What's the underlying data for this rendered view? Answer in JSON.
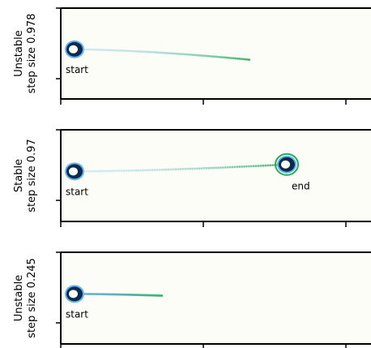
{
  "chart_data": [
    {
      "type": "scatter",
      "title": "",
      "ylabel": [
        "Unstable",
        "step size 0.978"
      ],
      "annotations": [
        "start"
      ],
      "trajectory": {
        "start": [
          0.0,
          0.5
        ],
        "end": [
          1.3,
          0.38
        ],
        "color_start": "#b5dce8",
        "color_end": "#3fb56b"
      },
      "markers": [
        {
          "kind": "start-ring",
          "x": 0.0,
          "y": 0.5
        }
      ],
      "xlim": [
        -0.1,
        2.1
      ],
      "ylim": [
        0,
        1
      ]
    },
    {
      "type": "scatter",
      "title": "",
      "ylabel": [
        "Stable",
        "step size 0.97"
      ],
      "annotations": [
        "start",
        "end"
      ],
      "trajectory": {
        "start": [
          0.0,
          0.5
        ],
        "end": [
          1.58,
          0.58
        ],
        "color_start": "#b5dce8",
        "color_end": "#3fb56b"
      },
      "markers": [
        {
          "kind": "start-ring",
          "x": 0.0,
          "y": 0.5
        },
        {
          "kind": "end-ring",
          "x": 1.58,
          "y": 0.58
        }
      ],
      "xlim": [
        -0.1,
        2.1
      ],
      "ylim": [
        0,
        1
      ]
    },
    {
      "type": "scatter",
      "title": "",
      "ylabel": [
        "Unstable",
        "step size 0.245"
      ],
      "annotations": [
        "start"
      ],
      "trajectory": {
        "start": [
          0.0,
          0.5
        ],
        "end": [
          0.65,
          0.48
        ],
        "color_start": "#5aa8cf",
        "color_end": "#3fb56b"
      },
      "markers": [
        {
          "kind": "start-ring",
          "x": 0.0,
          "y": 0.5
        }
      ],
      "xlim": [
        -0.1,
        2.1
      ],
      "ylim": [
        0,
        1
      ]
    }
  ],
  "colors": {
    "panel_bg": "#fbfdf6",
    "ring_dark": "#0a2a50",
    "ring_mid": "#1e73c8",
    "ring_light": "#63b7ee",
    "end_ring_edge": "#2ea85e"
  }
}
